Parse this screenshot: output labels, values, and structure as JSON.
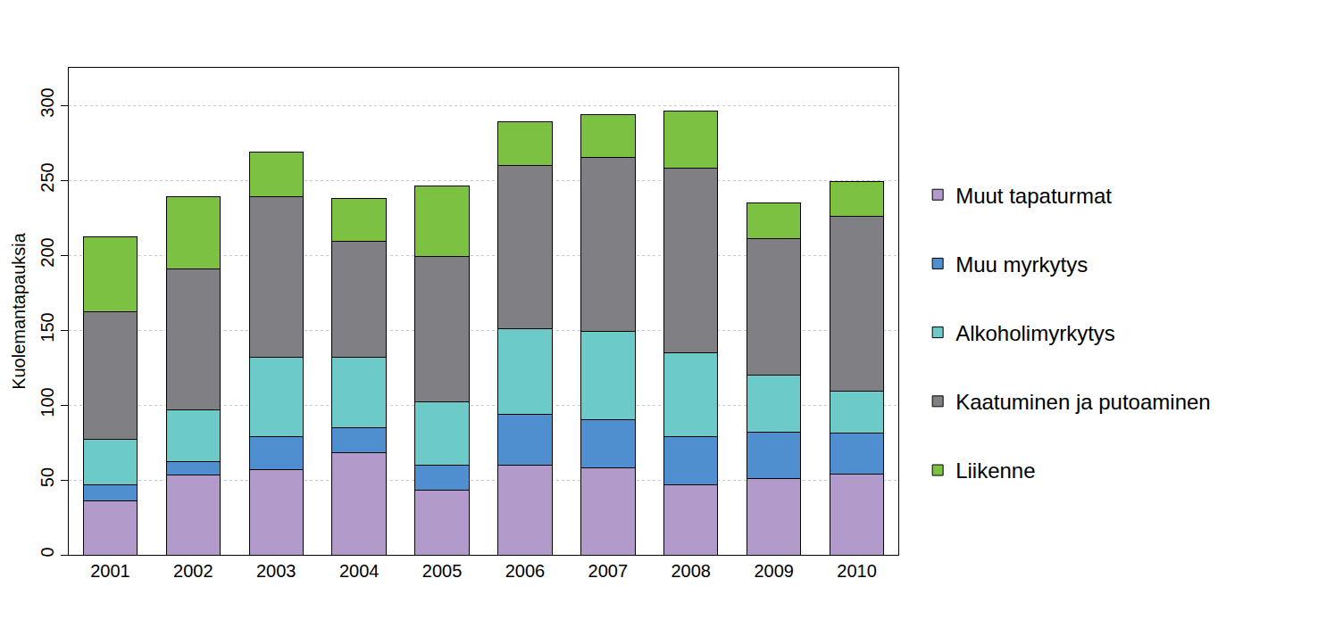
{
  "chart_data": {
    "type": "bar",
    "stacked": true,
    "y_label": "Kuolemantapauksia",
    "categories": [
      "2001",
      "2002",
      "2003",
      "2004",
      "2005",
      "2006",
      "2007",
      "2008",
      "2009",
      "2010"
    ],
    "series": [
      {
        "name": "Muut tapaturmat",
        "color": "#b29bcb",
        "values": [
          36,
          53,
          57,
          68,
          43,
          60,
          58,
          47,
          51,
          54
        ]
      },
      {
        "name": "Muu myrkytys",
        "color": "#4f8fcf",
        "values": [
          11,
          9,
          22,
          17,
          17,
          34,
          32,
          32,
          31,
          27
        ]
      },
      {
        "name": "Alkoholimyrkytys",
        "color": "#6ccac8",
        "values": [
          30,
          35,
          53,
          47,
          42,
          57,
          59,
          56,
          38,
          28
        ]
      },
      {
        "name": "Kaatuminen ja putoaminen",
        "color": "#808084",
        "values": [
          85,
          94,
          107,
          77,
          97,
          109,
          116,
          123,
          91,
          117
        ]
      },
      {
        "name": "Liikenne",
        "color": "#7dc142",
        "values": [
          50,
          48,
          30,
          29,
          47,
          29,
          29,
          38,
          24,
          23
        ]
      }
    ],
    "ylim": [
      0,
      325
    ],
    "yticks": [
      0,
      50,
      100,
      150,
      200,
      250,
      300
    ],
    "grid": true,
    "legend": "right"
  }
}
